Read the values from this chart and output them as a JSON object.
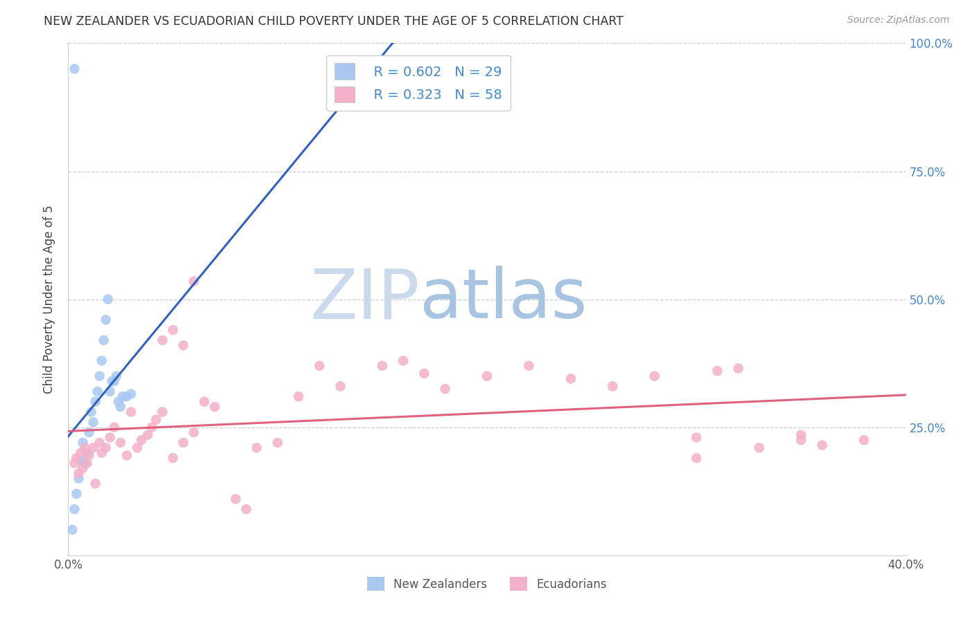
{
  "title": "NEW ZEALANDER VS ECUADORIAN CHILD POVERTY UNDER THE AGE OF 5 CORRELATION CHART",
  "source": "Source: ZipAtlas.com",
  "ylabel": "Child Poverty Under the Age of 5",
  "xmin": 0.0,
  "xmax": 0.4,
  "ymin": 0.0,
  "ymax": 1.0,
  "nz_R": 0.602,
  "nz_N": 29,
  "ecu_R": 0.323,
  "ecu_N": 58,
  "nz_color": "#a8c8f0",
  "ecu_color": "#f4b0c8",
  "nz_line_color": "#3060c0",
  "ecu_line_color": "#e06080",
  "watermark_color": "#dce8f5",
  "right_axis_color": "#4488cc",
  "nz_x": [
    0.002,
    0.003,
    0.004,
    0.005,
    0.006,
    0.007,
    0.008,
    0.009,
    0.01,
    0.011,
    0.012,
    0.013,
    0.014,
    0.015,
    0.016,
    0.017,
    0.018,
    0.019,
    0.02,
    0.021,
    0.022,
    0.023,
    0.024,
    0.025,
    0.026,
    0.028,
    0.03,
    0.003,
    0.145
  ],
  "nz_y": [
    0.05,
    0.09,
    0.12,
    0.15,
    0.185,
    0.22,
    0.18,
    0.2,
    0.24,
    0.28,
    0.26,
    0.3,
    0.32,
    0.35,
    0.38,
    0.42,
    0.46,
    0.5,
    0.32,
    0.34,
    0.34,
    0.35,
    0.3,
    0.29,
    0.31,
    0.31,
    0.315,
    0.95,
    0.96
  ],
  "ecu_x": [
    0.003,
    0.004,
    0.005,
    0.006,
    0.007,
    0.008,
    0.009,
    0.01,
    0.012,
    0.013,
    0.015,
    0.016,
    0.018,
    0.02,
    0.022,
    0.025,
    0.028,
    0.03,
    0.033,
    0.035,
    0.038,
    0.04,
    0.042,
    0.045,
    0.05,
    0.055,
    0.06,
    0.065,
    0.07,
    0.08,
    0.085,
    0.09,
    0.1,
    0.11,
    0.12,
    0.13,
    0.15,
    0.16,
    0.17,
    0.18,
    0.2,
    0.22,
    0.24,
    0.26,
    0.28,
    0.3,
    0.31,
    0.32,
    0.33,
    0.35,
    0.36,
    0.38,
    0.045,
    0.05,
    0.055,
    0.06,
    0.3,
    0.35
  ],
  "ecu_y": [
    0.18,
    0.19,
    0.16,
    0.2,
    0.17,
    0.21,
    0.18,
    0.195,
    0.21,
    0.14,
    0.22,
    0.2,
    0.21,
    0.23,
    0.25,
    0.22,
    0.195,
    0.28,
    0.21,
    0.225,
    0.235,
    0.25,
    0.265,
    0.28,
    0.19,
    0.22,
    0.24,
    0.3,
    0.29,
    0.11,
    0.09,
    0.21,
    0.22,
    0.31,
    0.37,
    0.33,
    0.37,
    0.38,
    0.355,
    0.325,
    0.35,
    0.37,
    0.345,
    0.33,
    0.35,
    0.19,
    0.36,
    0.365,
    0.21,
    0.225,
    0.215,
    0.225,
    0.42,
    0.44,
    0.41,
    0.535,
    0.23,
    0.235
  ]
}
